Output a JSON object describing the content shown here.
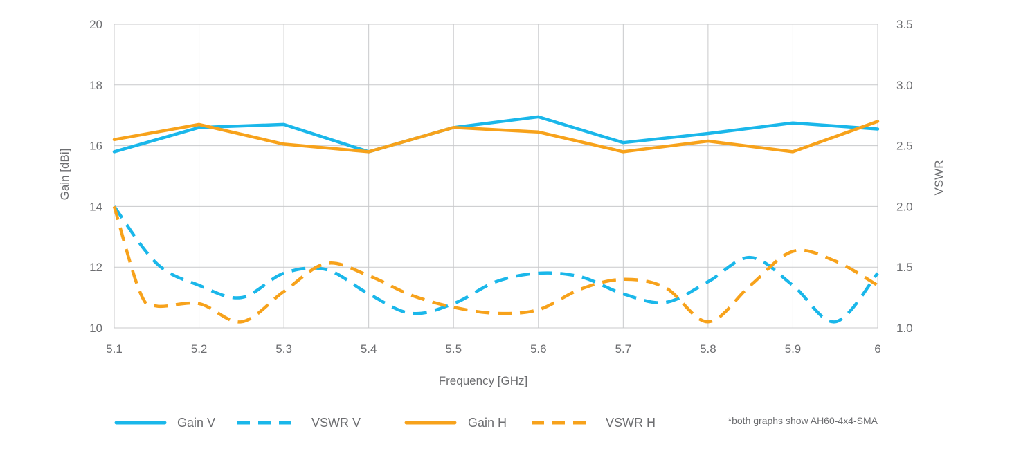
{
  "chart_data": {
    "type": "line",
    "xlabel": "Frequency [GHz]",
    "ylabel_left": "Gain [dBi]",
    "ylabel_right": "VSWR",
    "x_ticks": [
      "5.1",
      "5.2",
      "5.3",
      "5.4",
      "5.5",
      "5.6",
      "5.7",
      "5.8",
      "5.9",
      "6"
    ],
    "xlim": [
      5.1,
      6.0
    ],
    "ylim_left": [
      10,
      20
    ],
    "y_ticks_left": [
      "10",
      "12",
      "14",
      "16",
      "18",
      "20"
    ],
    "ylim_right": [
      1.0,
      3.5
    ],
    "y_ticks_right": [
      "1.0",
      "1.5",
      "2.0",
      "2.5",
      "3.0",
      "3.5"
    ],
    "grid": true,
    "legend_position": "bottom",
    "series": [
      {
        "name": "Gain V",
        "axis": "left",
        "style": "solid",
        "color": "#1ab7ea",
        "x": [
          5.1,
          5.2,
          5.3,
          5.4,
          5.5,
          5.6,
          5.7,
          5.8,
          5.9,
          6.0
        ],
        "y": [
          15.8,
          16.6,
          16.7,
          15.8,
          16.6,
          16.95,
          16.1,
          16.4,
          16.75,
          16.55
        ]
      },
      {
        "name": "Gain H",
        "axis": "left",
        "style": "solid",
        "color": "#f7a21b",
        "x": [
          5.1,
          5.2,
          5.3,
          5.4,
          5.5,
          5.6,
          5.7,
          5.8,
          5.9,
          6.0
        ],
        "y": [
          16.2,
          16.7,
          16.05,
          15.8,
          16.6,
          16.45,
          15.8,
          16.15,
          15.8,
          16.8
        ]
      },
      {
        "name": "VSWR V",
        "axis": "right",
        "style": "dashed",
        "color": "#1ab7ea",
        "x": [
          5.1,
          5.15,
          5.2,
          5.25,
          5.3,
          5.35,
          5.4,
          5.45,
          5.5,
          5.55,
          5.6,
          5.65,
          5.7,
          5.75,
          5.8,
          5.85,
          5.9,
          5.95,
          6.0
        ],
        "y": [
          2.0,
          1.53,
          1.35,
          1.25,
          1.45,
          1.48,
          1.28,
          1.12,
          1.2,
          1.38,
          1.45,
          1.42,
          1.28,
          1.21,
          1.38,
          1.58,
          1.35,
          1.05,
          1.45
        ]
      },
      {
        "name": "VSWR H",
        "axis": "right",
        "style": "dashed",
        "color": "#f7a21b",
        "x": [
          5.1,
          5.13,
          5.15,
          5.2,
          5.25,
          5.3,
          5.35,
          5.4,
          5.45,
          5.5,
          5.55,
          5.6,
          5.65,
          5.7,
          5.75,
          5.8,
          5.85,
          5.9,
          5.95,
          6.0
        ],
        "y": [
          2.0,
          1.3,
          1.18,
          1.2,
          1.05,
          1.3,
          1.53,
          1.43,
          1.27,
          1.17,
          1.12,
          1.15,
          1.32,
          1.4,
          1.33,
          1.05,
          1.35,
          1.63,
          1.55,
          1.35
        ]
      }
    ],
    "note": "*both graphs show AH60-4x4-SMA"
  }
}
